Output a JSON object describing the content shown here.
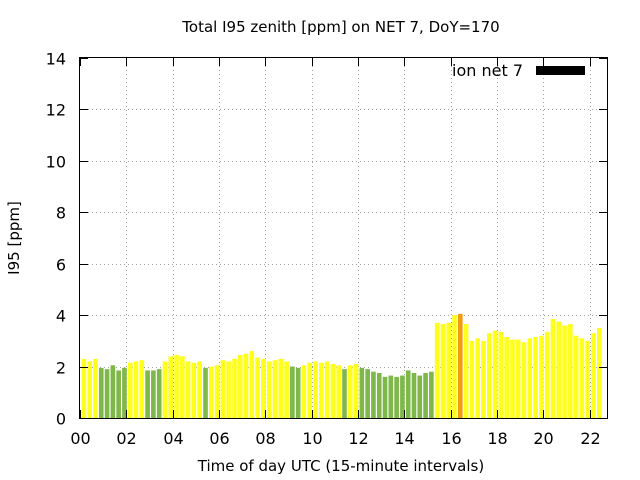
{
  "chart_data": {
    "type": "bar",
    "title": "Total I95 zenith [ppm] on NET 7, DoY=170",
    "xlabel": "Time of day UTC (15-minute intervals)",
    "ylabel": "I95 [ppm]",
    "ylim": [
      0,
      14
    ],
    "xlim": [
      0,
      22.75
    ],
    "y_ticks": [
      0,
      2,
      4,
      6,
      8,
      10,
      12,
      14
    ],
    "x_ticks": [
      0,
      2,
      4,
      6,
      8,
      10,
      12,
      14,
      16,
      18,
      20,
      22
    ],
    "x_tick_labels": [
      "00",
      "02",
      "04",
      "06",
      "08",
      "10",
      "12",
      "14",
      "16",
      "18",
      "20",
      "22"
    ],
    "grid": true,
    "legend": {
      "label": "ion net 7",
      "color": "#000000",
      "position": "top-right"
    },
    "interval_hours": 0.25,
    "colors": {
      "yellow": "#ffff1e",
      "green": "#7fb84a",
      "orange": "#f39c12"
    },
    "values": [
      2.3,
      2.2,
      2.3,
      1.95,
      1.9,
      2.05,
      1.85,
      1.95,
      2.15,
      2.2,
      2.25,
      1.85,
      1.85,
      1.9,
      2.2,
      2.4,
      2.45,
      2.4,
      2.2,
      2.15,
      2.2,
      1.95,
      2.0,
      2.05,
      2.25,
      2.2,
      2.3,
      2.45,
      2.5,
      2.6,
      2.35,
      2.3,
      2.2,
      2.25,
      2.3,
      2.2,
      2.0,
      1.95,
      2.05,
      2.15,
      2.2,
      2.15,
      2.2,
      2.1,
      2.05,
      1.9,
      2.05,
      2.1,
      1.95,
      1.9,
      1.8,
      1.75,
      1.6,
      1.65,
      1.6,
      1.65,
      1.85,
      1.75,
      1.65,
      1.75,
      1.8,
      3.7,
      3.65,
      3.7,
      4.0,
      4.05,
      3.65,
      3.0,
      3.1,
      3.0,
      3.3,
      3.4,
      3.35,
      3.15,
      3.05,
      3.05,
      2.95,
      3.1,
      3.15,
      3.2,
      3.35,
      3.85,
      3.75,
      3.6,
      3.65,
      3.2,
      3.1,
      3.0,
      3.3,
      3.5
    ],
    "bar_colors": [
      "yellow",
      "yellow",
      "yellow",
      "green",
      "green",
      "green",
      "green",
      "green",
      "yellow",
      "yellow",
      "yellow",
      "green",
      "green",
      "green",
      "yellow",
      "yellow",
      "yellow",
      "yellow",
      "yellow",
      "yellow",
      "yellow",
      "green",
      "yellow",
      "yellow",
      "yellow",
      "yellow",
      "yellow",
      "yellow",
      "yellow",
      "yellow",
      "yellow",
      "yellow",
      "yellow",
      "yellow",
      "yellow",
      "yellow",
      "green",
      "green",
      "yellow",
      "yellow",
      "yellow",
      "yellow",
      "yellow",
      "yellow",
      "yellow",
      "green",
      "yellow",
      "yellow",
      "green",
      "green",
      "green",
      "green",
      "green",
      "green",
      "green",
      "green",
      "green",
      "green",
      "green",
      "green",
      "green",
      "yellow",
      "yellow",
      "yellow",
      "yellow",
      "orange",
      "yellow",
      "yellow",
      "yellow",
      "yellow",
      "yellow",
      "yellow",
      "yellow",
      "yellow",
      "yellow",
      "yellow",
      "yellow",
      "yellow",
      "yellow",
      "yellow",
      "yellow",
      "yellow",
      "yellow",
      "yellow",
      "yellow",
      "yellow",
      "yellow",
      "yellow",
      "yellow",
      "yellow"
    ]
  }
}
